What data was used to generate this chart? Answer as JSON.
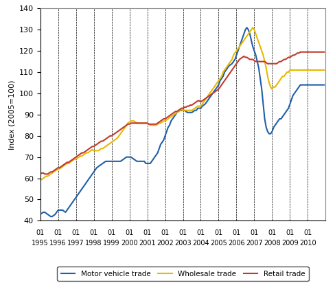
{
  "title": "",
  "ylabel": "Index (2005=100)",
  "ylim": [
    40,
    140
  ],
  "yticks": [
    40,
    50,
    60,
    70,
    80,
    90,
    100,
    110,
    120,
    130,
    140
  ],
  "start_year": 1995,
  "end_year": 2010,
  "colors": {
    "motor_vehicle": "#1f5faa",
    "wholesale": "#e8b800",
    "retail": "#c0392b"
  },
  "legend_labels": [
    "Motor vehicle trade",
    "Wholesale trade",
    "Retail trade"
  ],
  "motor_vehicle": [
    43,
    43.5,
    44,
    44,
    43.5,
    43,
    42.5,
    42,
    42,
    42.5,
    43,
    44,
    45,
    45,
    45,
    45,
    44.5,
    44,
    45,
    46,
    47,
    48,
    49,
    50,
    51,
    52,
    53,
    54,
    55,
    56,
    57,
    58,
    59,
    60,
    61,
    62,
    63,
    64,
    65,
    65.5,
    66,
    66.5,
    67,
    67.5,
    68,
    68,
    68,
    68,
    68,
    68,
    68,
    68,
    68,
    68,
    68,
    68.5,
    69,
    69.5,
    70,
    70,
    70,
    70,
    69.5,
    69,
    68.5,
    68,
    68,
    68,
    68,
    68,
    68,
    67,
    67,
    67,
    67,
    68,
    69,
    70,
    71,
    72,
    74,
    76,
    77,
    78,
    80,
    82,
    84,
    85,
    87,
    88,
    89,
    90,
    91,
    91.5,
    92,
    92,
    92,
    92,
    91.5,
    91,
    91,
    91,
    91,
    91.5,
    92,
    92,
    93,
    93,
    93,
    94,
    94.5,
    95,
    96,
    97,
    98,
    99,
    100,
    101,
    102,
    103,
    104,
    106,
    107,
    108,
    110,
    111,
    112,
    113,
    113.5,
    114,
    115,
    116,
    118,
    120,
    122,
    124,
    126,
    128,
    130,
    131,
    130,
    128,
    125,
    122,
    120,
    118,
    115,
    112,
    107,
    102,
    95,
    88,
    84,
    82,
    81,
    81,
    82,
    84,
    85,
    86,
    87,
    88,
    88,
    89,
    90,
    91,
    92,
    93,
    95,
    97,
    99,
    100,
    101,
    102,
    103,
    104,
    104,
    104,
    104,
    104,
    104,
    104,
    104,
    104,
    104,
    104,
    104,
    104,
    104,
    104,
    104,
    104
  ],
  "wholesale": [
    59,
    59.5,
    60,
    60.5,
    61,
    61,
    61.5,
    62,
    62.5,
    63,
    63.5,
    64,
    64,
    64.5,
    65,
    65.5,
    66,
    66.5,
    67,
    67,
    67.5,
    68,
    68.5,
    69,
    69,
    69.5,
    70,
    70.5,
    70.5,
    71,
    71.5,
    72,
    72,
    72.5,
    73,
    73.5,
    73,
    73,
    73,
    73,
    73.5,
    74,
    74,
    74.5,
    75,
    75.5,
    76,
    76.5,
    77,
    77.5,
    78,
    78.5,
    79,
    80,
    81,
    82,
    83,
    84,
    85,
    86,
    86.5,
    87,
    87,
    87,
    86.5,
    86,
    86,
    86,
    86,
    86,
    86,
    86,
    86,
    85.5,
    85,
    85,
    85,
    85,
    85,
    85.5,
    86,
    86,
    86.5,
    87,
    87,
    87.5,
    88,
    88.5,
    89,
    89.5,
    90,
    90.5,
    91,
    91.5,
    92,
    92.5,
    92,
    92,
    92,
    92,
    92,
    92,
    92,
    92.5,
    93,
    93.5,
    94,
    94,
    94,
    95,
    96,
    97,
    98,
    99,
    100,
    101,
    102,
    103,
    104,
    105,
    106,
    107,
    108,
    110,
    111,
    112,
    113,
    114,
    115,
    116,
    118,
    119,
    120,
    121,
    122,
    123,
    124,
    125,
    126,
    127,
    128,
    129,
    130,
    131,
    130,
    128,
    126,
    124,
    122,
    120,
    118,
    115,
    112,
    108,
    105,
    103,
    102,
    103,
    103,
    104,
    105,
    106,
    107,
    108,
    108,
    109,
    110,
    110,
    111,
    111,
    111,
    111,
    111,
    111,
    111,
    111,
    111,
    111,
    111,
    111,
    111,
    111,
    111,
    111,
    111,
    111,
    111,
    111,
    111,
    111,
    111,
    111
  ],
  "retail": [
    62,
    62.5,
    62.5,
    62,
    62,
    62,
    62.5,
    63,
    63,
    63.5,
    64,
    64.5,
    65,
    65,
    65.5,
    66,
    66.5,
    67,
    67.5,
    67.5,
    68,
    68.5,
    69,
    69.5,
    70,
    70.5,
    71,
    71.5,
    72,
    72,
    72.5,
    73,
    73.5,
    74,
    74.5,
    75,
    75,
    75.5,
    76,
    76.5,
    77,
    77.5,
    77.5,
    78,
    78.5,
    79,
    79.5,
    80,
    80,
    80.5,
    81,
    81.5,
    82,
    82.5,
    83,
    83.5,
    84,
    84.5,
    85,
    85.5,
    85.5,
    86,
    86,
    86,
    86,
    86,
    86,
    86,
    86,
    86,
    86,
    86,
    86,
    85.5,
    85.5,
    85.5,
    85.5,
    85.5,
    85.5,
    86,
    86.5,
    87,
    87.5,
    88,
    88,
    88.5,
    89,
    89.5,
    90,
    90.5,
    91,
    91.5,
    91.5,
    92,
    92.5,
    93,
    93,
    93.5,
    93.5,
    94,
    94,
    94.5,
    94.5,
    95,
    95.5,
    96,
    96.5,
    96.5,
    96,
    96.5,
    97,
    97.5,
    98,
    98.5,
    99,
    99.5,
    100,
    100.5,
    101,
    101.5,
    102,
    103,
    104,
    105,
    106,
    107,
    108,
    109,
    110,
    111,
    112,
    113,
    114,
    115,
    116,
    116.5,
    117,
    117.5,
    117,
    117,
    116.5,
    116,
    116,
    116,
    115.5,
    115,
    115,
    115,
    115,
    115,
    115,
    115,
    114.5,
    114,
    114,
    114,
    114,
    114,
    114,
    114,
    114.5,
    115,
    115,
    115.5,
    116,
    116,
    116.5,
    117,
    117,
    117.5,
    118,
    118,
    118.5,
    119,
    119,
    119.5,
    119.5,
    119.5,
    119.5,
    119.5,
    119.5,
    119.5,
    119.5,
    119.5,
    119.5,
    119.5,
    119.5,
    119.5,
    119.5,
    119.5,
    119.5,
    119.5
  ],
  "background_color": "#ffffff",
  "line_width": 1.5
}
